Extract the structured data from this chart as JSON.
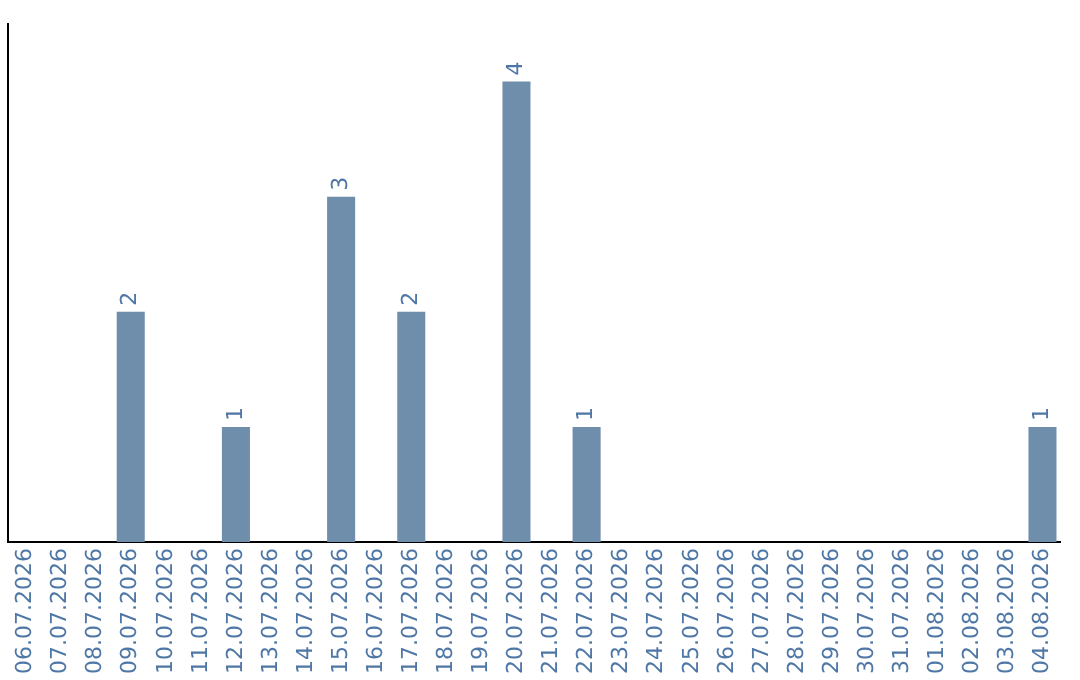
{
  "chart_data": {
    "type": "bar",
    "categories": [
      "06.07.2026",
      "07.07.2026",
      "08.07.2026",
      "09.07.2026",
      "10.07.2026",
      "11.07.2026",
      "12.07.2026",
      "13.07.2026",
      "14.07.2026",
      "15.07.2026",
      "16.07.2026",
      "17.07.2026",
      "18.07.2026",
      "19.07.2026",
      "20.07.2026",
      "21.07.2026",
      "22.07.2026",
      "23.07.2026",
      "24.07.2026",
      "25.07.2026",
      "26.07.2026",
      "27.07.2026",
      "28.07.2026",
      "29.07.2026",
      "30.07.2026",
      "31.07.2026",
      "01.08.2026",
      "02.08.2026",
      "03.08.2026",
      "04.08.2026"
    ],
    "values": [
      0,
      0,
      0,
      2,
      0,
      0,
      1,
      0,
      0,
      3,
      0,
      2,
      0,
      0,
      4,
      0,
      1,
      0,
      0,
      0,
      0,
      0,
      0,
      0,
      0,
      0,
      0,
      0,
      0,
      1
    ],
    "value_labels": [
      null,
      null,
      null,
      "2",
      null,
      null,
      "1",
      null,
      null,
      "3",
      null,
      "2",
      null,
      null,
      "4",
      null,
      "1",
      null,
      null,
      null,
      null,
      null,
      null,
      null,
      null,
      null,
      null,
      null,
      null,
      "1"
    ],
    "color": "#6e8eab",
    "tick_labels": "x",
    "grid": false,
    "legend": false
  }
}
